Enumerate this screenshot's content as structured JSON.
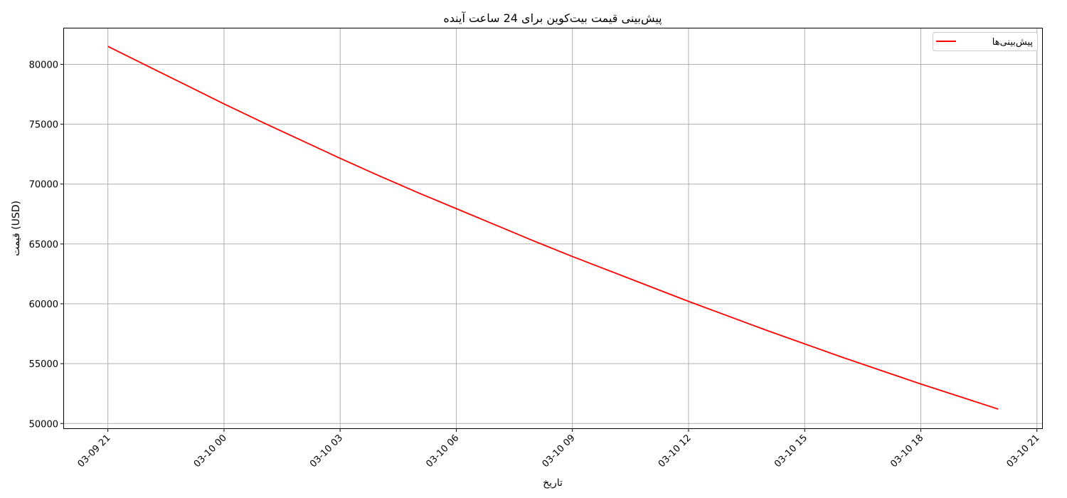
{
  "chart_data": {
    "type": "line",
    "title": "پیش‌بینی قیمت بیت‌کوین برای 24 ساعت آینده",
    "xlabel": "تاریخ",
    "ylabel": "قیمت (USD)",
    "x": [
      "03-09 21:00",
      "03-09 22:00",
      "03-09 23:00",
      "03-10 00:00",
      "03-10 01:00",
      "03-10 02:00",
      "03-10 03:00",
      "03-10 04:00",
      "03-10 05:00",
      "03-10 06:00",
      "03-10 07:00",
      "03-10 08:00",
      "03-10 09:00",
      "03-10 10:00",
      "03-10 11:00",
      "03-10 12:00",
      "03-10 13:00",
      "03-10 14:00",
      "03-10 15:00",
      "03-10 16:00",
      "03-10 17:00",
      "03-10 18:00",
      "03-10 19:00",
      "03-10 20:00"
    ],
    "series": [
      {
        "name": "پیش‌بینی‌ها",
        "color": "#ff0000",
        "values": [
          81500,
          79900,
          78300,
          76700,
          75150,
          73650,
          72150,
          70700,
          69300,
          67950,
          66600,
          65250,
          63950,
          62700,
          61450,
          60200,
          59000,
          57800,
          56650,
          55500,
          54400,
          53300,
          52250,
          51200
        ]
      }
    ],
    "xticks": [
      "03-09 21",
      "03-10 00",
      "03-10 03",
      "03-10 06",
      "03-10 09",
      "03-10 12",
      "03-10 15",
      "03-10 18",
      "03-10 21"
    ],
    "yticks": [
      "50000",
      "55000",
      "60000",
      "65000",
      "70000",
      "75000",
      "80000"
    ],
    "xlim": [
      "03-09 19:52",
      "03-10 21:08"
    ],
    "ylim": [
      49600,
      83000
    ],
    "grid": true,
    "legend_position": "top-right"
  }
}
